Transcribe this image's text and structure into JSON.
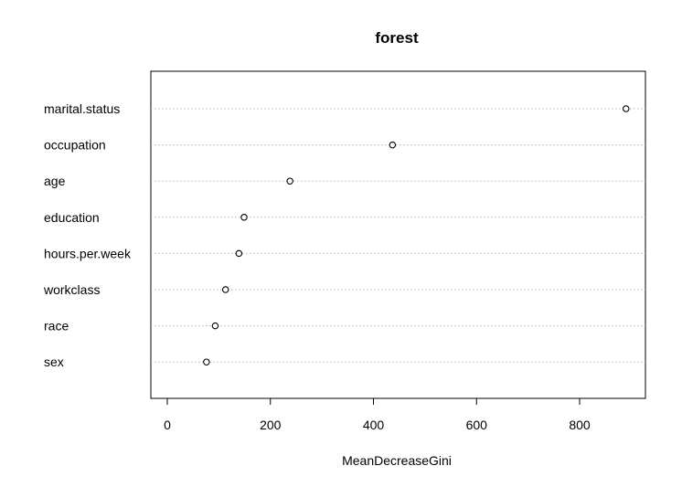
{
  "chart_data": {
    "type": "scatter",
    "subtype": "dotchart",
    "title": "forest",
    "xlabel": "MeanDecreaseGini",
    "ylabel": "",
    "xlim": [
      -35,
      930
    ],
    "xticks": [
      0,
      200,
      400,
      600,
      800
    ],
    "grid": "horizontal dotted lines per variable",
    "marker": "open circle",
    "categories": [
      "marital.status",
      "occupation",
      "age",
      "education",
      "hours.per.week",
      "workclass",
      "race",
      "sex"
    ],
    "values": [
      890,
      437,
      238,
      149,
      139,
      113,
      93,
      76
    ]
  }
}
